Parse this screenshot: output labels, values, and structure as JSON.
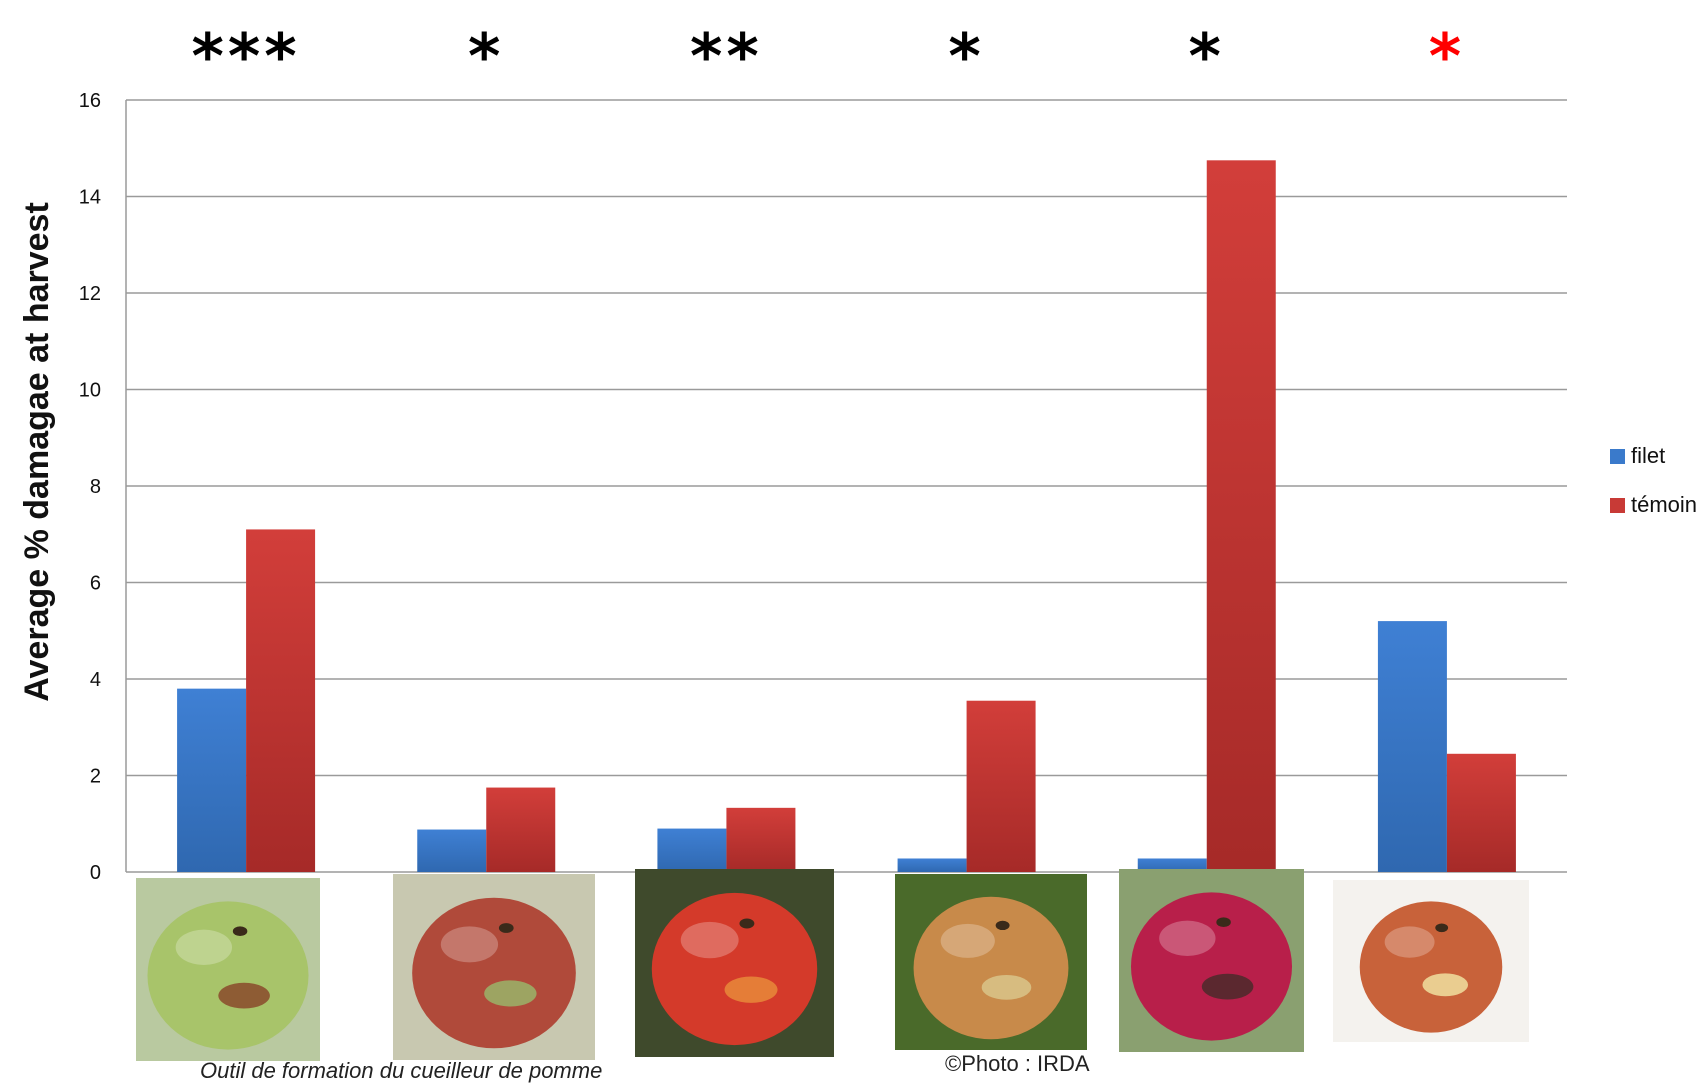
{
  "chart_data": {
    "type": "bar",
    "ylabel": "Average % damagae at harvest",
    "ylim": [
      0,
      16
    ],
    "yticks": [
      0,
      2,
      4,
      6,
      8,
      10,
      12,
      14,
      16
    ],
    "grid": true,
    "legend_position": "right",
    "categories": [
      "",
      "",
      "",
      "",
      "",
      ""
    ],
    "series": [
      {
        "name": "filet",
        "color": "#3a7acb",
        "values": [
          3.8,
          0.88,
          0.9,
          0.28,
          0.28,
          5.2
        ]
      },
      {
        "name": "témoin",
        "color": "#c83a36",
        "values": [
          7.1,
          1.75,
          1.33,
          3.55,
          14.75,
          2.45
        ]
      }
    ],
    "significance": [
      {
        "label": "***",
        "color": "#000000"
      },
      {
        "label": "*",
        "color": "#000000"
      },
      {
        "label": "**",
        "color": "#000000"
      },
      {
        "label": "*",
        "color": "#000000"
      },
      {
        "label": "*",
        "color": "#000000"
      },
      {
        "label": "*",
        "color": "#ff0000"
      }
    ],
    "photos": [
      {
        "icon": "green-apple-with-damage-icon",
        "bg": "#b9c9a0",
        "apple": "#a8c46a",
        "spot": "#8a4a2a"
      },
      {
        "icon": "red-green-apple-with-scar-icon",
        "bg": "#c8c8b0",
        "apple": "#b04a3a",
        "spot": "#9ab46a"
      },
      {
        "icon": "red-apple-icon",
        "bg": "#3f4a2c",
        "apple": "#d43a2a",
        "spot": "#e88a3a"
      },
      {
        "icon": "apple-with-skin-damage-icon",
        "bg": "#4a6a2a",
        "apple": "#c88a4a",
        "spot": "#d9c48a"
      },
      {
        "icon": "purple-apple-with-holes-icon",
        "bg": "#8aa070",
        "apple": "#b81f4a",
        "spot": "#4a2a2a"
      },
      {
        "icon": "apple-with-tunnel-damage-icon",
        "bg": "#f4f2ee",
        "apple": "#c8623a",
        "spot": "#f0e0a0"
      }
    ]
  },
  "captions": {
    "left": "Outil de formation du cueilleur de pomme",
    "right": "©Photo : IRDA"
  }
}
